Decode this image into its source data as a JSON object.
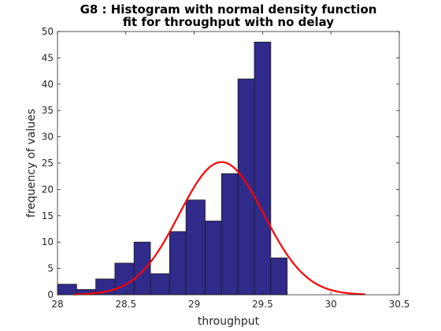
{
  "chart_data": {
    "type": "bar",
    "title_lines": [
      "G8 : Histogram with normal density function",
      "fit for throughput with no delay"
    ],
    "xlabel": "throughput",
    "ylabel": "frequency of values",
    "xlim": [
      28,
      30.5
    ],
    "ylim": [
      0,
      50
    ],
    "xticks": [
      "28",
      "28.5",
      "29",
      "29.5",
      "30",
      "30.5"
    ],
    "yticks": [
      "0",
      "5",
      "10",
      "15",
      "20",
      "25",
      "30",
      "35",
      "40",
      "45",
      "50"
    ],
    "grid": false,
    "bin_edges": [
      28.0,
      28.14,
      28.28,
      28.42,
      28.56,
      28.68,
      28.82,
      28.94,
      29.08,
      29.2,
      29.32,
      29.44,
      29.56,
      29.68
    ],
    "values": [
      2,
      1,
      3,
      6,
      10,
      4,
      12,
      18,
      14,
      23,
      41,
      48,
      7
    ],
    "bar_color": "#302B8A",
    "bar_edge_color": "#1a1a1a",
    "fit": {
      "type": "normal",
      "mean": 29.2,
      "peak": 25.2,
      "sigma": 0.31,
      "x_range": [
        28.12,
        30.25
      ],
      "color": "#FF0000"
    }
  }
}
